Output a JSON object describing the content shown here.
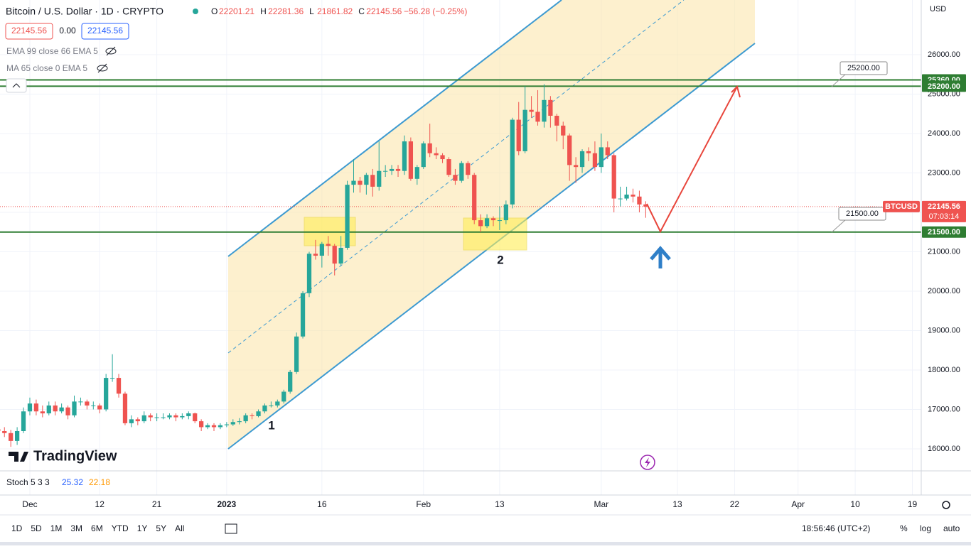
{
  "header": {
    "symbol": "Bitcoin / U.S. Dollar · 1D · CRYPTO",
    "keys": [
      "O",
      "H",
      "L",
      "C"
    ],
    "change": "−56.28 (−0.25%)"
  },
  "quote": {
    "bid": "22145.56",
    "spread": "0.00",
    "ask": "22145.56"
  },
  "indicators": [
    "EMA 99 close 66 EMA 5",
    "MA 65 close 0 EMA 5"
  ],
  "currency": "USD",
  "brand": "TradingView",
  "price_tag": {
    "symbol": "BTCUSD",
    "countdown": "07:03:14"
  },
  "annotations": [
    "1",
    "2"
  ],
  "stoch": {
    "name": "Stoch 5 3 3",
    "k": 25.32,
    "d": 22.18
  },
  "toolbar": {
    "ranges": [
      "1D",
      "5D",
      "1M",
      "3M",
      "6M",
      "YTD",
      "1Y",
      "5Y",
      "All"
    ],
    "clock": "18:56:46 (UTC+2)",
    "options": [
      "%",
      "log",
      "auto"
    ]
  },
  "chart_data": {
    "type": "candlestick",
    "up_color": "#26a69a",
    "down_color": "#ef5350",
    "xlim": [
      0.3,
      145.4
    ],
    "xticks": [
      {
        "value": 5,
        "label": "Dec"
      },
      {
        "value": 16,
        "label": "12"
      },
      {
        "value": 25,
        "label": "21"
      },
      {
        "value": 36,
        "label": "2023"
      },
      {
        "value": 51,
        "label": "16"
      },
      {
        "value": 67,
        "label": "Feb"
      },
      {
        "value": 79,
        "label": "13"
      },
      {
        "value": 95,
        "label": "Mar"
      },
      {
        "value": 107,
        "label": "13"
      },
      {
        "value": 116,
        "label": "22"
      },
      {
        "value": 126,
        "label": "Apr"
      },
      {
        "value": 135,
        "label": "10"
      },
      {
        "value": 144,
        "label": "19"
      }
    ],
    "ylim": [
      15441,
      27387
    ],
    "yticks": [
      {
        "value": 16000,
        "label": "16000.00"
      },
      {
        "value": 17000,
        "label": "17000.00"
      },
      {
        "value": 18000,
        "label": "18000.00"
      },
      {
        "value": 19000,
        "label": "19000.00"
      },
      {
        "value": 20000,
        "label": "20000.00"
      },
      {
        "value": 21000,
        "label": "21000.00"
      },
      {
        "value": 22000,
        "label": "22000.00"
      },
      {
        "value": 23000,
        "label": "23000.00"
      },
      {
        "value": 24000,
        "label": "24000.00"
      },
      {
        "value": 25000,
        "label": "25000.00"
      },
      {
        "value": 26000,
        "label": "26000.00"
      }
    ],
    "grid": true,
    "levels": [
      {
        "value": 25360,
        "label": "25360.00"
      },
      {
        "value": 25200,
        "label": "25200.00"
      },
      {
        "value": 21500,
        "label": "21500.00"
      }
    ],
    "ohlc": [
      [
        16500,
        16600,
        16380,
        16450
      ],
      [
        16450,
        16550,
        16300,
        16400
      ],
      [
        16400,
        16480,
        16050,
        16200
      ],
      [
        16200,
        16550,
        16100,
        16450
      ],
      [
        16450,
        17050,
        16400,
        16950
      ],
      [
        16950,
        17300,
        16850,
        17150
      ],
      [
        17150,
        17250,
        16850,
        16950
      ],
      [
        16950,
        17100,
        16800,
        16900
      ],
      [
        16900,
        17200,
        16850,
        17100
      ],
      [
        17100,
        17200,
        16850,
        16950
      ],
      [
        16950,
        17150,
        16900,
        17050
      ],
      [
        17050,
        17100,
        16750,
        16850
      ],
      [
        16850,
        17350,
        16800,
        17200
      ],
      [
        17200,
        17300,
        17100,
        17200
      ],
      [
        17200,
        17250,
        17000,
        17100
      ],
      [
        17100,
        17200,
        17000,
        17100
      ],
      [
        17100,
        17150,
        16900,
        17000
      ],
      [
        17000,
        17900,
        16950,
        17800
      ],
      [
        17800,
        18400,
        17700,
        17800
      ],
      [
        17800,
        17900,
        17300,
        17400
      ],
      [
        17400,
        17450,
        16600,
        16650
      ],
      [
        16650,
        16850,
        16550,
        16750
      ],
      [
        16750,
        16800,
        16600,
        16700
      ],
      [
        16700,
        16950,
        16650,
        16850
      ],
      [
        16850,
        16900,
        16700,
        16800
      ],
      [
        16800,
        16900,
        16700,
        16800
      ],
      [
        16800,
        16900,
        16750,
        16800
      ],
      [
        16800,
        16900,
        16750,
        16850
      ],
      [
        16850,
        16900,
        16700,
        16800
      ],
      [
        16800,
        16900,
        16750,
        16830
      ],
      [
        16830,
        16950,
        16750,
        16900
      ],
      [
        16900,
        16920,
        16650,
        16700
      ],
      [
        16700,
        16750,
        16450,
        16550
      ],
      [
        16550,
        16650,
        16500,
        16600
      ],
      [
        16600,
        16650,
        16450,
        16550
      ],
      [
        16550,
        16650,
        16500,
        16600
      ],
      [
        16600,
        16680,
        16550,
        16620
      ],
      [
        16620,
        16750,
        16580,
        16680
      ],
      [
        16680,
        16780,
        16620,
        16700
      ],
      [
        16700,
        16900,
        16650,
        16850
      ],
      [
        16850,
        16900,
        16750,
        16830
      ],
      [
        16830,
        17000,
        16800,
        16950
      ],
      [
        16950,
        17150,
        16900,
        17100
      ],
      [
        17100,
        17200,
        17050,
        17100
      ],
      [
        17100,
        17250,
        17050,
        17200
      ],
      [
        17200,
        17500,
        17150,
        17450
      ],
      [
        17450,
        18000,
        17400,
        17950
      ],
      [
        17950,
        18950,
        17900,
        18850
      ],
      [
        18850,
        20000,
        18800,
        19950
      ],
      [
        19950,
        21000,
        19850,
        20950
      ],
      [
        20950,
        21300,
        20800,
        20900
      ],
      [
        20900,
        21250,
        20600,
        21200
      ],
      [
        21200,
        21400,
        20900,
        21150
      ],
      [
        21150,
        21200,
        20400,
        20700
      ],
      [
        20700,
        21400,
        20650,
        21100
      ],
      [
        21100,
        22800,
        21050,
        22700
      ],
      [
        22700,
        23350,
        22500,
        22800
      ],
      [
        22800,
        22900,
        22500,
        22700
      ],
      [
        22700,
        23000,
        22450,
        22950
      ],
      [
        22950,
        23100,
        22400,
        22650
      ],
      [
        22650,
        23800,
        22550,
        23050
      ],
      [
        23050,
        23200,
        22900,
        23050
      ],
      [
        23050,
        23200,
        22950,
        23100
      ],
      [
        23100,
        23200,
        22900,
        23050
      ],
      [
        23050,
        23950,
        22950,
        23800
      ],
      [
        23800,
        23900,
        22800,
        22850
      ],
      [
        22850,
        23200,
        22700,
        23150
      ],
      [
        23150,
        23800,
        23100,
        23750
      ],
      [
        23750,
        24250,
        23400,
        23500
      ],
      [
        23500,
        23650,
        23350,
        23450
      ],
      [
        23450,
        23500,
        23250,
        23350
      ],
      [
        23350,
        23400,
        22900,
        22950
      ],
      [
        22950,
        23100,
        22700,
        22800
      ],
      [
        22800,
        23300,
        22750,
        23250
      ],
      [
        23250,
        23300,
        22850,
        22950
      ],
      [
        22950,
        23000,
        21700,
        21800
      ],
      [
        21800,
        21950,
        21500,
        21650
      ],
      [
        21650,
        21950,
        21600,
        21850
      ],
      [
        21850,
        21900,
        21650,
        21800
      ],
      [
        21800,
        22150,
        21550,
        21800
      ],
      [
        21800,
        22300,
        21700,
        22200
      ],
      [
        22200,
        24400,
        22100,
        24350
      ],
      [
        24350,
        24800,
        23450,
        23550
      ],
      [
        23550,
        25200,
        23500,
        24600
      ],
      [
        24600,
        24950,
        24400,
        24550
      ],
      [
        24550,
        25100,
        24200,
        24300
      ],
      [
        24300,
        25250,
        24150,
        24850
      ],
      [
        24850,
        24950,
        24150,
        24450
      ],
      [
        24450,
        24500,
        23800,
        24200
      ],
      [
        24200,
        24300,
        23600,
        23950
      ],
      [
        23950,
        24000,
        22800,
        23200
      ],
      [
        23200,
        23400,
        22750,
        23150
      ],
      [
        23150,
        23600,
        23000,
        23550
      ],
      [
        23550,
        23650,
        23300,
        23500
      ],
      [
        23500,
        23800,
        23050,
        23150
      ],
      [
        23150,
        24000,
        23000,
        23650
      ],
      [
        23650,
        23800,
        23350,
        23450
      ],
      [
        23450,
        23500,
        22000,
        22350
      ],
      [
        22350,
        22650,
        22150,
        22350
      ],
      [
        22350,
        22650,
        22300,
        22450
      ],
      [
        22450,
        22600,
        22250,
        22400
      ],
      [
        22400,
        22550,
        22000,
        22200
      ],
      [
        22201.21,
        22281.36,
        21861.82,
        22145.56
      ]
    ]
  }
}
